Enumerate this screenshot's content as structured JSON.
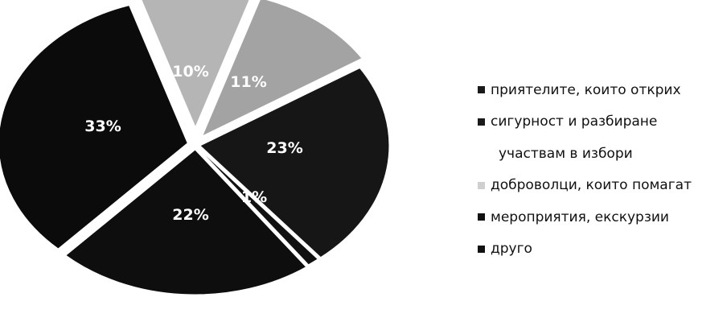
{
  "chart_data": {
    "type": "pie",
    "style": "3d-exploded",
    "slices": [
      {
        "label": "",
        "value": 10,
        "data_label": "10%",
        "color": "#b5b5b5"
      },
      {
        "label": "",
        "value": 11,
        "data_label": "11%",
        "color": "#a3a3a3"
      },
      {
        "label": "",
        "value": 23,
        "data_label": "23%",
        "color": "#161616"
      },
      {
        "label": "",
        "value": 1,
        "data_label": "1%",
        "color": "#111111"
      },
      {
        "label": "",
        "value": 22,
        "data_label": "22%",
        "color": "#0e0e0e"
      },
      {
        "label": "",
        "value": 33,
        "data_label": "33%",
        "color": "#0b0b0b"
      }
    ],
    "legend": {
      "position": "right",
      "items": [
        {
          "text": "приятелите, които открих",
          "color": "#1a1a1a",
          "marker": true
        },
        {
          "text": "сигурност и разбиране",
          "color": "#1a1a1a",
          "marker": true
        },
        {
          "text": "участвам в избори",
          "color": "",
          "marker": false
        },
        {
          "text": "доброволци, които помагат",
          "color": "#cfcfcf",
          "marker": true
        },
        {
          "text": "мероприятия, екскурзии",
          "color": "#111111",
          "marker": true
        },
        {
          "text": "друго",
          "color": "#111111",
          "marker": true
        }
      ]
    }
  }
}
